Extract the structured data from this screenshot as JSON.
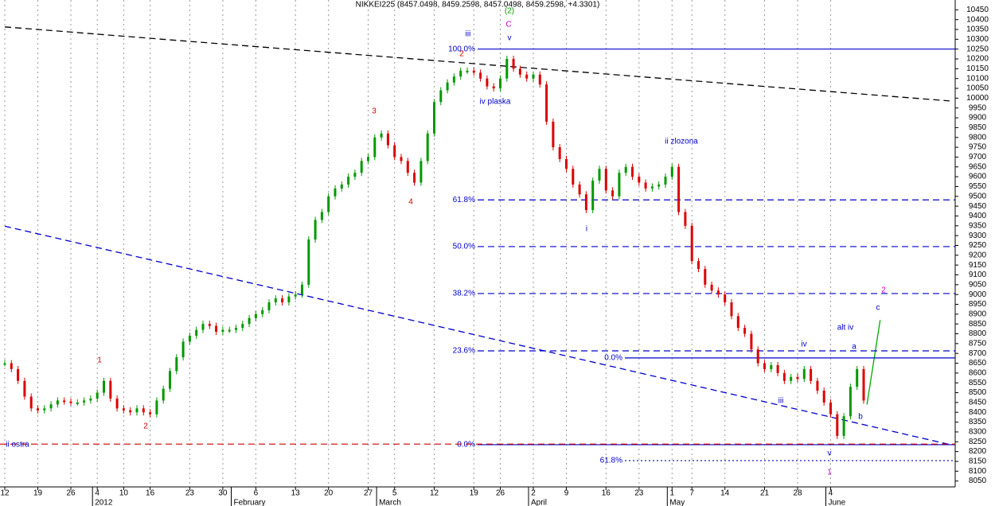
{
  "chart_data": {
    "type": "candlestick",
    "title": "NIKKEI225 (8457.0498, 8459.2598, 8457.0498, 8459.2598, +4.3301)",
    "categories": [
      "12",
      null,
      null,
      null,
      null,
      "19",
      null,
      null,
      null,
      null,
      "26",
      null,
      null,
      null,
      "4",
      null,
      null,
      null,
      "10",
      null,
      null,
      null,
      "16",
      null,
      null,
      null,
      null,
      null,
      "23",
      null,
      null,
      null,
      null,
      "30",
      null,
      null,
      null,
      null,
      "6",
      null,
      null,
      null,
      null,
      null,
      "13",
      null,
      null,
      null,
      null,
      "20",
      null,
      null,
      null,
      null,
      null,
      "27",
      null,
      null,
      null,
      "5",
      null,
      null,
      null,
      null,
      null,
      "12",
      null,
      null,
      null,
      null,
      null,
      "19",
      null,
      null,
      null,
      "26",
      null,
      null,
      null,
      null,
      "2",
      null,
      null,
      null,
      null,
      "9",
      null,
      null,
      null,
      null,
      null,
      "16",
      null,
      null,
      null,
      null,
      "23",
      null,
      null,
      null,
      null,
      "1",
      null,
      null,
      "7",
      null,
      null,
      null,
      null,
      "14",
      null,
      null,
      null,
      null,
      null,
      "21",
      null,
      null,
      null,
      null,
      "28",
      null,
      null,
      null,
      null,
      "4",
      null,
      null,
      null,
      null,
      null,
      null,
      null,
      null,
      null,
      null,
      null,
      null,
      null,
      null,
      null,
      null,
      null,
      null
    ],
    "months": [
      null,
      null,
      null,
      null,
      null,
      null,
      null,
      null,
      null,
      null,
      null,
      null,
      null,
      null,
      "2012",
      null,
      null,
      null,
      null,
      null,
      null,
      null,
      null,
      null,
      null,
      null,
      null,
      null,
      null,
      null,
      null,
      null,
      null,
      null,
      null,
      "February",
      null,
      null,
      null,
      null,
      null,
      null,
      null,
      null,
      null,
      null,
      null,
      null,
      null,
      null,
      null,
      null,
      null,
      null,
      null,
      null,
      null,
      "March",
      null,
      null,
      null,
      null,
      null,
      null,
      null,
      null,
      null,
      null,
      null,
      null,
      null,
      null,
      null,
      null,
      null,
      null,
      null,
      null,
      null,
      null,
      "April",
      null,
      null,
      null,
      null,
      null,
      null,
      null,
      null,
      null,
      null,
      null,
      null,
      null,
      null,
      null,
      null,
      null,
      null,
      null,
      null,
      "May",
      null,
      null,
      null,
      null,
      null,
      null,
      null,
      null,
      null,
      null,
      null,
      null,
      null,
      null,
      null,
      null,
      null,
      null,
      null,
      null,
      null,
      null,
      null,
      "June",
      null,
      null,
      null,
      null,
      null,
      null,
      null,
      null,
      null,
      null,
      null,
      null,
      null,
      null,
      null,
      null,
      null,
      null
    ],
    "values": [
      8650,
      8620,
      8560,
      8480,
      8420,
      8410,
      8420,
      8440,
      8460,
      8455,
      8450,
      8450,
      8460,
      8470,
      8500,
      8560,
      8470,
      8420,
      8410,
      8400,
      8420,
      8400,
      8390,
      8460,
      8520,
      8610,
      8680,
      8760,
      8790,
      8820,
      8850,
      8840,
      8810,
      8820,
      8820,
      8830,
      8850,
      8880,
      8900,
      8920,
      8960,
      8980,
      8960,
      8990,
      9000,
      9050,
      9280,
      9380,
      9420,
      9500,
      9540,
      9560,
      9600,
      9620,
      9680,
      9700,
      9800,
      9820,
      9760,
      9700,
      9680,
      9620,
      9570,
      9680,
      9820,
      9980,
      10040,
      10080,
      10110,
      10140,
      10140,
      10130,
      10100,
      10060,
      10050,
      10100,
      10200,
      10150,
      10120,
      10100,
      10120,
      10070,
      9880,
      9750,
      9690,
      9640,
      9560,
      9510,
      9430,
      9580,
      9640,
      9530,
      9500,
      9620,
      9650,
      9600,
      9570,
      9540,
      9550,
      9560,
      9600,
      9650,
      9420,
      9350,
      9170,
      9130,
      9050,
      9020,
      9000,
      8960,
      8890,
      8830,
      8800,
      8720,
      8650,
      8620,
      8640,
      8600,
      8560,
      8580,
      8570,
      8620,
      8560,
      8510,
      8450,
      8390,
      8280,
      8380,
      8530,
      8620,
      8460,
      null,
      null,
      null,
      null,
      null,
      null,
      null,
      null,
      null,
      null,
      null,
      null,
      null
    ],
    "up_color": "#009900",
    "down_color": "#dd0000",
    "ylim": [
      8020,
      10500
    ],
    "yticks": [
      8050,
      8100,
      8150,
      8200,
      8250,
      8300,
      8350,
      8400,
      8450,
      8500,
      8550,
      8600,
      8650,
      8700,
      8750,
      8800,
      8850,
      8900,
      8950,
      9000,
      9050,
      9100,
      9150,
      9200,
      9250,
      9300,
      9350,
      9400,
      9450,
      9500,
      9550,
      9600,
      9650,
      9700,
      9750,
      9800,
      9850,
      9900,
      9950,
      10000,
      10050,
      10100,
      10150,
      10200,
      10250,
      10300,
      10350,
      10400,
      10450
    ],
    "grid": true,
    "levels": [
      {
        "label": "100.0%",
        "value": 10250,
        "color": "#0000cc",
        "style": "solid"
      },
      {
        "label": "61.8%",
        "value": 9482,
        "color": "#0000cc",
        "style": "dashed"
      },
      {
        "label": "50.0%",
        "value": 9244,
        "color": "#0000cc",
        "style": "dashed"
      },
      {
        "label": "38.2%",
        "value": 9005,
        "color": "#0000cc",
        "style": "dashed"
      },
      {
        "label": "23.6%",
        "value": 8713,
        "color": "#0000cc",
        "style": "dashed"
      },
      {
        "label": "0.0%",
        "value": 8677,
        "color": "#0000cc",
        "style": "solid"
      },
      {
        "label": "0.0%",
        "value": 8235,
        "color": "#0000cc",
        "style": "solid"
      },
      {
        "label": "61.8%",
        "value": 8154,
        "color": "#0000cc",
        "style": "dotted"
      },
      {
        "value": 8238,
        "color": "#cc0000",
        "style": "dashed"
      }
    ],
    "trendlines": [
      {
        "x": [
          0,
          143
        ],
        "values": [
          10363,
          9986
        ],
        "color": "#000000",
        "style": "dashed"
      },
      {
        "x": [
          0,
          143
        ],
        "values": [
          9348,
          8236
        ],
        "color": "#0000cc",
        "style": "dashed"
      },
      {
        "x": [
          130.5,
          132.5
        ],
        "values": [
          8440,
          8870
        ],
        "color": "#00aa00",
        "style": "solid"
      }
    ],
    "annotations": [
      "(2)",
      "C",
      "iii",
      "v",
      "2",
      "iv plaska",
      "3",
      "4",
      "1",
      "2",
      "ii ostra",
      "i",
      "ii zlozona",
      "iii",
      "iv",
      "v",
      "1",
      "alt iv",
      "a",
      "b",
      "c",
      "2"
    ]
  }
}
